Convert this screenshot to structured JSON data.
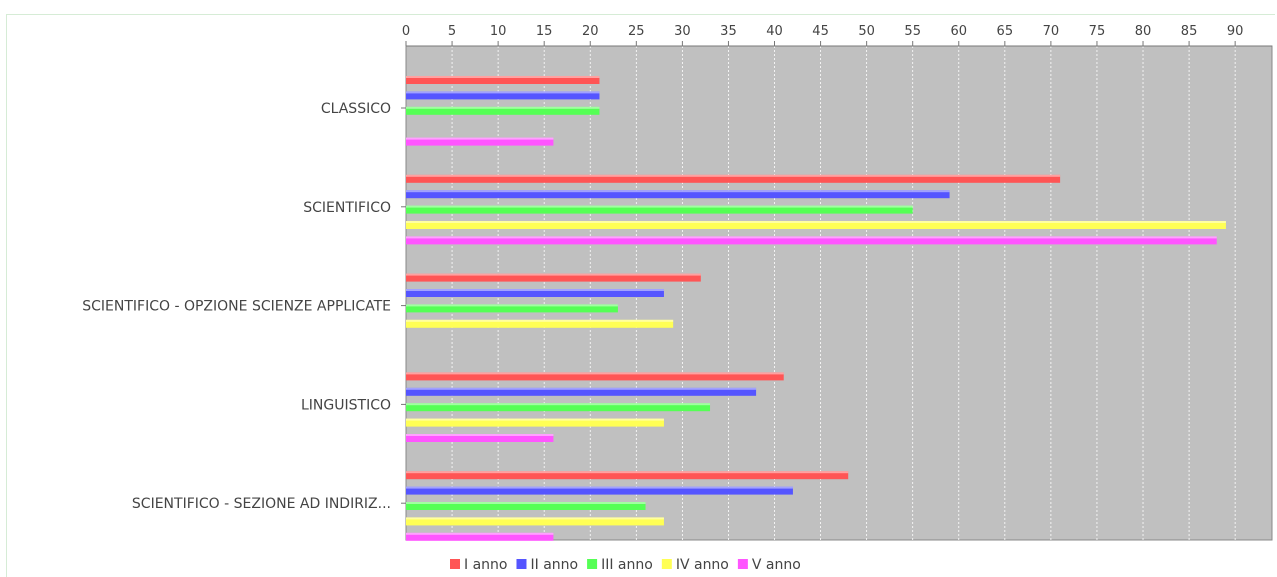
{
  "chart_data": {
    "type": "bar",
    "orientation": "horizontal",
    "x_axis_position": "top",
    "xlim": [
      0,
      94
    ],
    "x_ticks": [
      0,
      5,
      10,
      15,
      20,
      25,
      30,
      35,
      40,
      45,
      50,
      55,
      60,
      65,
      70,
      75,
      80,
      85,
      90
    ],
    "grid": true,
    "legend_position": "bottom",
    "categories": [
      "CLASSICO",
      "SCIENTIFICO",
      "SCIENTIFICO -  OPZIONE SCIENZE APPLICATE",
      "LINGUISTICO",
      "SCIENTIFICO - SEZIONE AD INDIRIZ..."
    ],
    "series": [
      {
        "name": "I anno",
        "color": "#ff5555",
        "values": [
          21,
          71,
          32,
          41,
          48
        ]
      },
      {
        "name": "II anno",
        "color": "#5555ff",
        "values": [
          21,
          59,
          28,
          38,
          42
        ]
      },
      {
        "name": "III anno",
        "color": "#55ff55",
        "values": [
          21,
          55,
          23,
          33,
          26
        ]
      },
      {
        "name": "IV anno",
        "color": "#ffff55",
        "values": [
          0,
          89,
          29,
          28,
          28
        ]
      },
      {
        "name": "V anno",
        "color": "#ff55ff",
        "values": [
          16,
          88,
          0,
          16,
          16
        ]
      }
    ],
    "plot_background": "#c0c0c0"
  }
}
